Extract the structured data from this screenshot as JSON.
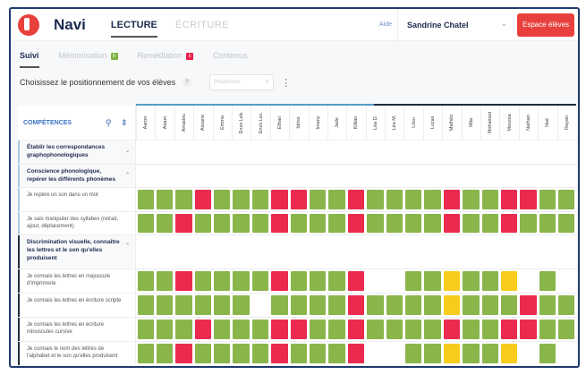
{
  "header": {
    "brand": "Navi",
    "tabs": [
      "LECTURE",
      "ÉCRITURE"
    ],
    "help": "Aide",
    "user": "Sandrine Chatel",
    "button": "Espace élèves"
  },
  "subtabs": [
    {
      "label": "Suivi"
    },
    {
      "label": "Mémorisation",
      "badge": "8",
      "color": "#7cb342"
    },
    {
      "label": "Remédiation",
      "badge": "6",
      "color": "#e91e4b"
    },
    {
      "label": "Contenus"
    }
  ],
  "prompt": {
    "text": "Choisissez le positionnement de vos élèves",
    "help": "?",
    "select_placeholder": "Positionner"
  },
  "table": {
    "header": "COMPÉTENCES",
    "students": [
      "Aaron",
      "Adam",
      "Amadou",
      "Assane",
      "Emma",
      "Enzo Leb.",
      "Enzo Lec.",
      "Ethan",
      "Idriss",
      "Imany",
      "Jade",
      "Killian",
      "Léa D.",
      "Léa M.",
      "Lilou",
      "Lucas",
      "Mathéo",
      "Mila",
      "Mohamed",
      "Moussa",
      "Nathan",
      "Noé",
      "Rayan"
    ],
    "rows": [
      {
        "type": "group",
        "label": "Établir les correspondances graphophonologiques",
        "expanded": false,
        "accent": "#a9cbe3"
      },
      {
        "type": "group",
        "label": "Conscience phonologique, repérer les différents phonèmes",
        "expanded": true,
        "accent": "#a9cbe3"
      },
      {
        "type": "skill",
        "label": "Je repère un son dans un mot",
        "accent": "#a9cbe3",
        "results": "gggrgggrrggrggggrggrrgg"
      },
      {
        "type": "skill",
        "label": "Je sais manipuler des syllabes (retrait, ajout, déplacement)",
        "accent": "#a9cbe3",
        "results": "ggrggggrgggrggggrggrggg"
      },
      {
        "type": "group",
        "label": "Discrimination visuelle, connaître les lettres et le son qu'elles produisent",
        "expanded": true,
        "accent": "#1f2d3d"
      },
      {
        "type": "skill",
        "label": "Je connais les lettres en majuscule d'imprimerie",
        "accent": "#1f2d3d",
        "results": "ggrggggrgggreeggyggyege"
      },
      {
        "type": "skill",
        "label": "Je connais les lettres en écriture scripte",
        "accent": "#1f2d3d",
        "results": "ggggggeggggrggggygggrgg"
      },
      {
        "type": "skill",
        "label": "Je connais les lettres en écriture minuscules cursive",
        "accent": "#1f2d3d",
        "results": "gggrgggrrggrggggrggrrgg"
      },
      {
        "type": "skill",
        "label": "Je connais le nom des lettres de l'alphabet et le son qu'elles produisent",
        "accent": "#1f2d3d",
        "results": "ggrggggrgggreeggyggyege"
      }
    ]
  },
  "legend_colors": {
    "g": "acquired (green)",
    "r": "not acquired (red)",
    "y": "in progress (yellow)",
    "e": "not evaluated"
  }
}
